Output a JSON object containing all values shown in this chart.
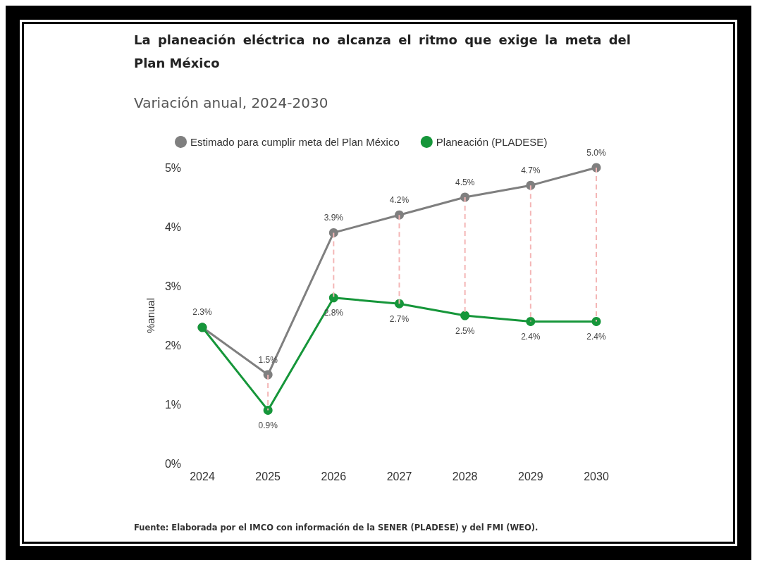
{
  "chart_data": {
    "type": "line",
    "title": "La planeación eléctrica no alcanza el ritmo que exige la meta del Plan México",
    "subtitle": "Variación anual, 2024-2030",
    "ylabel": "%anual",
    "categories": [
      "2024",
      "2025",
      "2026",
      "2027",
      "2028",
      "2029",
      "2030"
    ],
    "series": [
      {
        "name": "Estimado para cumplir meta del Plan México",
        "color": "#7f7f7f",
        "values": [
          2.3,
          1.5,
          3.9,
          4.2,
          4.5,
          4.7,
          5.0
        ],
        "value_labels": [
          "2.3%",
          "1.5%",
          "3.9%",
          "4.2%",
          "4.5%",
          "4.7%",
          "5.0%"
        ]
      },
      {
        "name": "Planeación (PLADESE)",
        "color": "#16963a",
        "values": [
          2.3,
          0.9,
          2.8,
          2.7,
          2.5,
          2.4,
          2.4
        ],
        "value_labels": [
          null,
          "0.9%",
          "2.8%",
          "2.7%",
          "2.5%",
          "2.4%",
          "2.4%"
        ]
      }
    ],
    "ylim": [
      0,
      5
    ],
    "yticks": [
      {
        "value": 0,
        "label": "0%"
      },
      {
        "value": 1,
        "label": "1%"
      },
      {
        "value": 2,
        "label": "2%"
      },
      {
        "value": 3,
        "label": "3%"
      },
      {
        "value": 4,
        "label": "4%"
      },
      {
        "value": 5,
        "label": "5%"
      }
    ],
    "grid": false,
    "legend": "top",
    "marker": "circle",
    "line_style": "solid",
    "annotations": [
      "Fuente: Elaborada por el IMCO con información de la SENER (PLADESE) y del FMI (WEO)."
    ]
  }
}
